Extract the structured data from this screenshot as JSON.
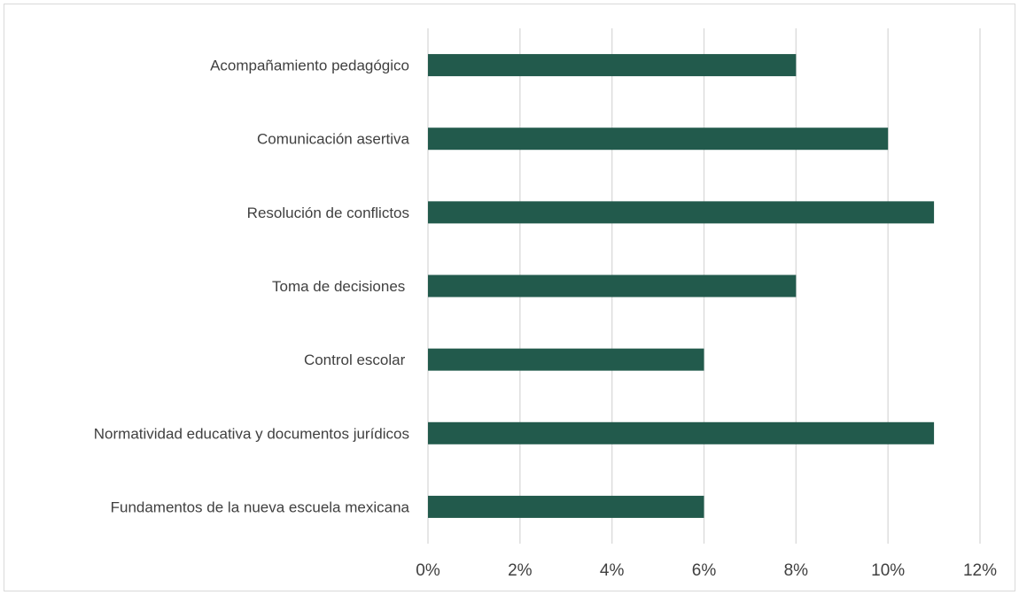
{
  "chart_data": {
    "type": "bar",
    "orientation": "horizontal",
    "title": "",
    "xlabel": "",
    "ylabel": "",
    "categories": [
      "Acompañamiento pedagógico",
      "Comunicación asertiva",
      "Resolución de conflictos",
      "Toma de decisiones ",
      "Control escolar ",
      "Normatividad educativa y documentos jurídicos",
      "Fundamentos de la nueva escuela mexicana"
    ],
    "values": [
      8,
      10,
      11,
      8,
      6,
      11,
      6
    ],
    "value_unit": "%",
    "xlim": [
      0,
      12
    ],
    "x_ticks": [
      0,
      2,
      4,
      6,
      8,
      10,
      12
    ],
    "x_tick_labels": [
      "0%",
      "2%",
      "4%",
      "6%",
      "8%",
      "10%",
      "12%"
    ],
    "grid": "vertical",
    "legend": "none",
    "colors": {
      "bar": "#225a4c",
      "grid": "#d9d9d9",
      "text": "#404040",
      "frame": "#d9d9d9"
    }
  }
}
